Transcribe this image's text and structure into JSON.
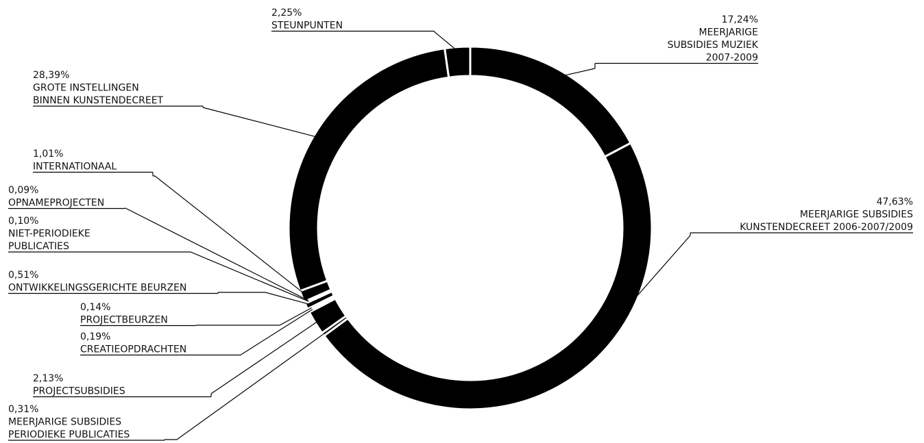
{
  "chart_data": {
    "type": "pie",
    "variant": "donut",
    "slices": [
      {
        "name": "MEERJARIGE SUBSIDIES MUZIEK 2007-2009",
        "pct_label": "17,24%",
        "lines": [
          "MEERJARIGE",
          "SUBSIDIES MUZIEK",
          "2007-2009"
        ],
        "value": 17.24
      },
      {
        "name": "MEERJARIGE SUBSIDIES KUNSTENDECREET 2006-2007/2009",
        "pct_label": "47,63%",
        "lines": [
          "MEERJARIGE SUBSIDIES",
          "KUNSTENDECREET 2006-2007/2009"
        ],
        "value": 47.63
      },
      {
        "name": "MEERJARIGE SUBSIDIES PERIODIEKE PUBLICATIES",
        "pct_label": "0,31%",
        "lines": [
          "MEERJARIGE SUBSIDIES",
          "PERIODIEKE PUBLICATIES"
        ],
        "value": 0.31
      },
      {
        "name": "PROJECTSUBSIDIES",
        "pct_label": "2,13%",
        "lines": [
          "PROJECTSUBSIDIES"
        ],
        "value": 2.13
      },
      {
        "name": "CREATIEOPDRACHTEN",
        "pct_label": "0,19%",
        "lines": [
          "CREATIEOPDRACHTEN"
        ],
        "value": 0.19
      },
      {
        "name": "PROJECTBEURZEN",
        "pct_label": "0,14%",
        "lines": [
          "PROJECTBEURZEN"
        ],
        "value": 0.14
      },
      {
        "name": "ONTWIKKELINGSGERICHTE BEURZEN",
        "pct_label": "0,51%",
        "lines": [
          "ONTWIKKELINGSGERICHTE BEURZEN"
        ],
        "value": 0.51
      },
      {
        "name": "NIET-PERIODIEKE PUBLICATIES",
        "pct_label": "0,10%",
        "lines": [
          "NIET-PERIODIEKE",
          "PUBLICATIES"
        ],
        "value": 0.1
      },
      {
        "name": "OPNAMEPROJECTEN",
        "pct_label": "0,09%",
        "lines": [
          "OPNAMEPROJECTEN"
        ],
        "value": 0.09
      },
      {
        "name": "INTERNATIONAAL",
        "pct_label": "1,01%",
        "lines": [
          "INTERNATIONAAL"
        ],
        "value": 1.01
      },
      {
        "name": "GROTE INSTELLINGEN BINNEN KUNSTENDECREET",
        "pct_label": "28,39%",
        "lines": [
          "GROTE INSTELLINGEN",
          "BINNEN KUNSTENDECREET"
        ],
        "value": 28.39
      },
      {
        "name": "STEUNPUNTEN",
        "pct_label": "2,25%",
        "lines": [
          "STEUNPUNTEN"
        ],
        "value": 2.25
      }
    ],
    "slice_color": "#000000",
    "separator_color": "#ffffff"
  }
}
